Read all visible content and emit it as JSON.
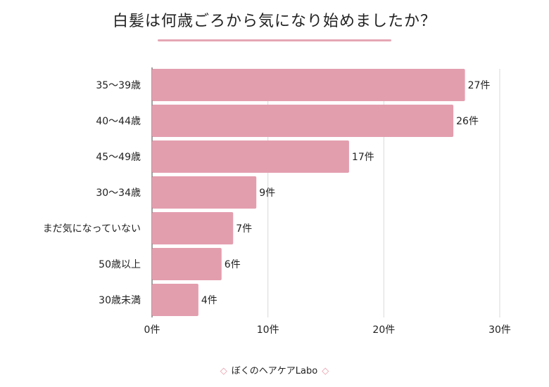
{
  "title": "白髪は何歳ごろから気になり始めましたか？",
  "footer": {
    "brand": "ぼくのヘアケアLabo",
    "left_icon": "lips-icon",
    "right_icon": "lips-icon"
  },
  "colors": {
    "bar": "#e39eae",
    "grid": "#d9d9d9",
    "accent": "#e5a6b4"
  },
  "chart_data": {
    "type": "bar",
    "orientation": "horizontal",
    "title": "白髪は何歳ごろから気になり始めましたか？",
    "categories": [
      "35～39歳",
      "40～44歳",
      "45～49歳",
      "30～34歳",
      "まだ気になっていない",
      "50歳以上",
      "30歳未満"
    ],
    "values": [
      27,
      26,
      17,
      9,
      7,
      6,
      4
    ],
    "value_labels": [
      "27件",
      "26件",
      "17件",
      "9件",
      "7件",
      "6件",
      "4件"
    ],
    "xlim": [
      0,
      30
    ],
    "xticks": [
      0,
      10,
      20,
      30
    ],
    "xtick_labels": [
      "0件",
      "10件",
      "20件",
      "30件"
    ],
    "grid": true,
    "legend": "none"
  }
}
